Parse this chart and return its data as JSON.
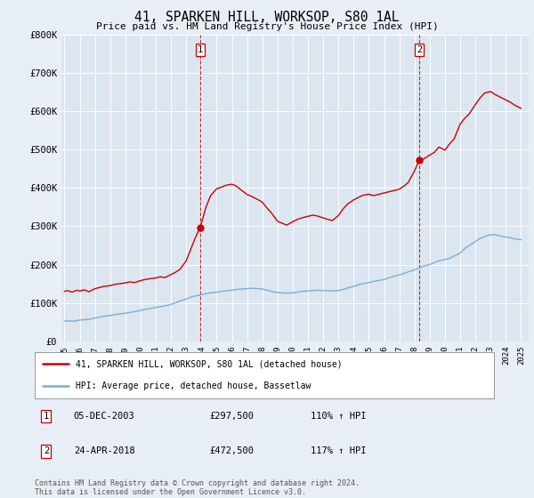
{
  "title": "41, SPARKEN HILL, WORKSOP, S80 1AL",
  "subtitle": "Price paid vs. HM Land Registry's House Price Index (HPI)",
  "ylabel_ticks": [
    "£0",
    "£100K",
    "£200K",
    "£300K",
    "£400K",
    "£500K",
    "£600K",
    "£700K",
    "£800K"
  ],
  "yvalues": [
    0,
    100000,
    200000,
    300000,
    400000,
    500000,
    600000,
    700000,
    800000
  ],
  "xlim": [
    1994.8,
    2025.5
  ],
  "ylim": [
    0,
    800000
  ],
  "bg_color": "#e8eef5",
  "plot_bg_color": "#dce6f0",
  "grid_color": "#ffffff",
  "red_line_color": "#cc0000",
  "blue_line_color": "#7aaed6",
  "marker1_x": 2003.92,
  "marker1_y": 297500,
  "marker2_x": 2018.31,
  "marker2_y": 472500,
  "legend_red_label": "41, SPARKEN HILL, WORKSOP, S80 1AL (detached house)",
  "legend_blue_label": "HPI: Average price, detached house, Bassetlaw",
  "table_rows": [
    {
      "num": "1",
      "date": "05-DEC-2003",
      "price": "£297,500",
      "hpi": "110% ↑ HPI"
    },
    {
      "num": "2",
      "date": "24-APR-2018",
      "price": "£472,500",
      "hpi": "117% ↑ HPI"
    }
  ],
  "footer": "Contains HM Land Registry data © Crown copyright and database right 2024.\nThis data is licensed under the Open Government Licence v3.0.",
  "red_x": [
    1995.0,
    1995.2,
    1995.5,
    1995.8,
    1996.0,
    1996.3,
    1996.6,
    1997.0,
    1997.3,
    1997.6,
    1998.0,
    1998.3,
    1998.6,
    1999.0,
    1999.3,
    1999.6,
    2000.0,
    2000.3,
    2000.6,
    2001.0,
    2001.3,
    2001.6,
    2002.0,
    2002.3,
    2002.6,
    2003.0,
    2003.3,
    2003.6,
    2003.92,
    2004.3,
    2004.6,
    2005.0,
    2005.3,
    2005.6,
    2006.0,
    2006.3,
    2006.6,
    2007.0,
    2007.3,
    2007.6,
    2008.0,
    2008.3,
    2008.6,
    2009.0,
    2009.3,
    2009.6,
    2010.0,
    2010.3,
    2010.6,
    2011.0,
    2011.3,
    2011.6,
    2012.0,
    2012.3,
    2012.6,
    2013.0,
    2013.3,
    2013.6,
    2014.0,
    2014.3,
    2014.6,
    2015.0,
    2015.3,
    2015.6,
    2016.0,
    2016.3,
    2016.6,
    2017.0,
    2017.3,
    2017.6,
    2018.0,
    2018.31,
    2018.6,
    2019.0,
    2019.3,
    2019.6,
    2020.0,
    2020.3,
    2020.6,
    2021.0,
    2021.3,
    2021.6,
    2022.0,
    2022.3,
    2022.6,
    2023.0,
    2023.3,
    2023.6,
    2024.0,
    2024.3,
    2024.6,
    2025.0
  ],
  "red_y": [
    130000,
    132000,
    128000,
    133000,
    131000,
    134000,
    129000,
    137000,
    140000,
    143000,
    145000,
    148000,
    150000,
    152000,
    155000,
    153000,
    158000,
    161000,
    163000,
    165000,
    168000,
    166000,
    174000,
    180000,
    188000,
    210000,
    240000,
    270000,
    297500,
    350000,
    380000,
    398000,
    402000,
    407000,
    410000,
    405000,
    395000,
    383000,
    378000,
    372000,
    363000,
    348000,
    335000,
    313000,
    308000,
    303000,
    312000,
    318000,
    322000,
    326000,
    329000,
    327000,
    322000,
    318000,
    315000,
    328000,
    345000,
    358000,
    369000,
    375000,
    381000,
    384000,
    380000,
    383000,
    387000,
    390000,
    393000,
    397000,
    405000,
    415000,
    445000,
    472500,
    476000,
    486000,
    493000,
    507000,
    499000,
    515000,
    528000,
    567000,
    582000,
    594000,
    618000,
    635000,
    648000,
    652000,
    644000,
    638000,
    630000,
    624000,
    616000,
    608000
  ],
  "blue_x": [
    1995.0,
    1995.3,
    1995.6,
    1996.0,
    1996.3,
    1996.6,
    1997.0,
    1997.3,
    1997.6,
    1998.0,
    1998.3,
    1998.6,
    1999.0,
    1999.3,
    1999.6,
    2000.0,
    2000.3,
    2000.6,
    2001.0,
    2001.3,
    2001.6,
    2002.0,
    2002.3,
    2002.6,
    2003.0,
    2003.3,
    2003.6,
    2004.0,
    2004.3,
    2004.6,
    2005.0,
    2005.3,
    2005.6,
    2006.0,
    2006.3,
    2006.6,
    2007.0,
    2007.3,
    2007.6,
    2008.0,
    2008.3,
    2008.6,
    2009.0,
    2009.3,
    2009.6,
    2010.0,
    2010.3,
    2010.6,
    2011.0,
    2011.3,
    2011.6,
    2012.0,
    2012.3,
    2012.6,
    2013.0,
    2013.3,
    2013.6,
    2014.0,
    2014.3,
    2014.6,
    2015.0,
    2015.3,
    2015.6,
    2016.0,
    2016.3,
    2016.6,
    2017.0,
    2017.3,
    2017.6,
    2018.0,
    2018.3,
    2018.6,
    2019.0,
    2019.3,
    2019.6,
    2020.0,
    2020.3,
    2020.6,
    2021.0,
    2021.3,
    2021.6,
    2022.0,
    2022.3,
    2022.6,
    2023.0,
    2023.3,
    2023.6,
    2024.0,
    2024.3,
    2024.6,
    2025.0
  ],
  "blue_y": [
    52000,
    53000,
    52000,
    55000,
    56000,
    57000,
    60000,
    63000,
    65000,
    67000,
    69000,
    71000,
    73000,
    75000,
    77000,
    80000,
    83000,
    85000,
    88000,
    90000,
    92000,
    96000,
    100000,
    105000,
    110000,
    115000,
    118000,
    121000,
    124000,
    126000,
    128000,
    130000,
    131000,
    133000,
    135000,
    136000,
    137000,
    138000,
    137500,
    136000,
    133000,
    130000,
    127000,
    126000,
    125500,
    126000,
    128000,
    130000,
    131000,
    132000,
    133000,
    132000,
    131500,
    131000,
    132000,
    135000,
    139000,
    143000,
    147000,
    150000,
    153000,
    156000,
    158000,
    161000,
    165000,
    169000,
    173000,
    177000,
    181000,
    186000,
    191000,
    196000,
    200000,
    205000,
    210000,
    213000,
    216000,
    222000,
    230000,
    242000,
    250000,
    260000,
    268000,
    273000,
    278000,
    278000,
    275000,
    272000,
    270000,
    267000,
    265000
  ]
}
